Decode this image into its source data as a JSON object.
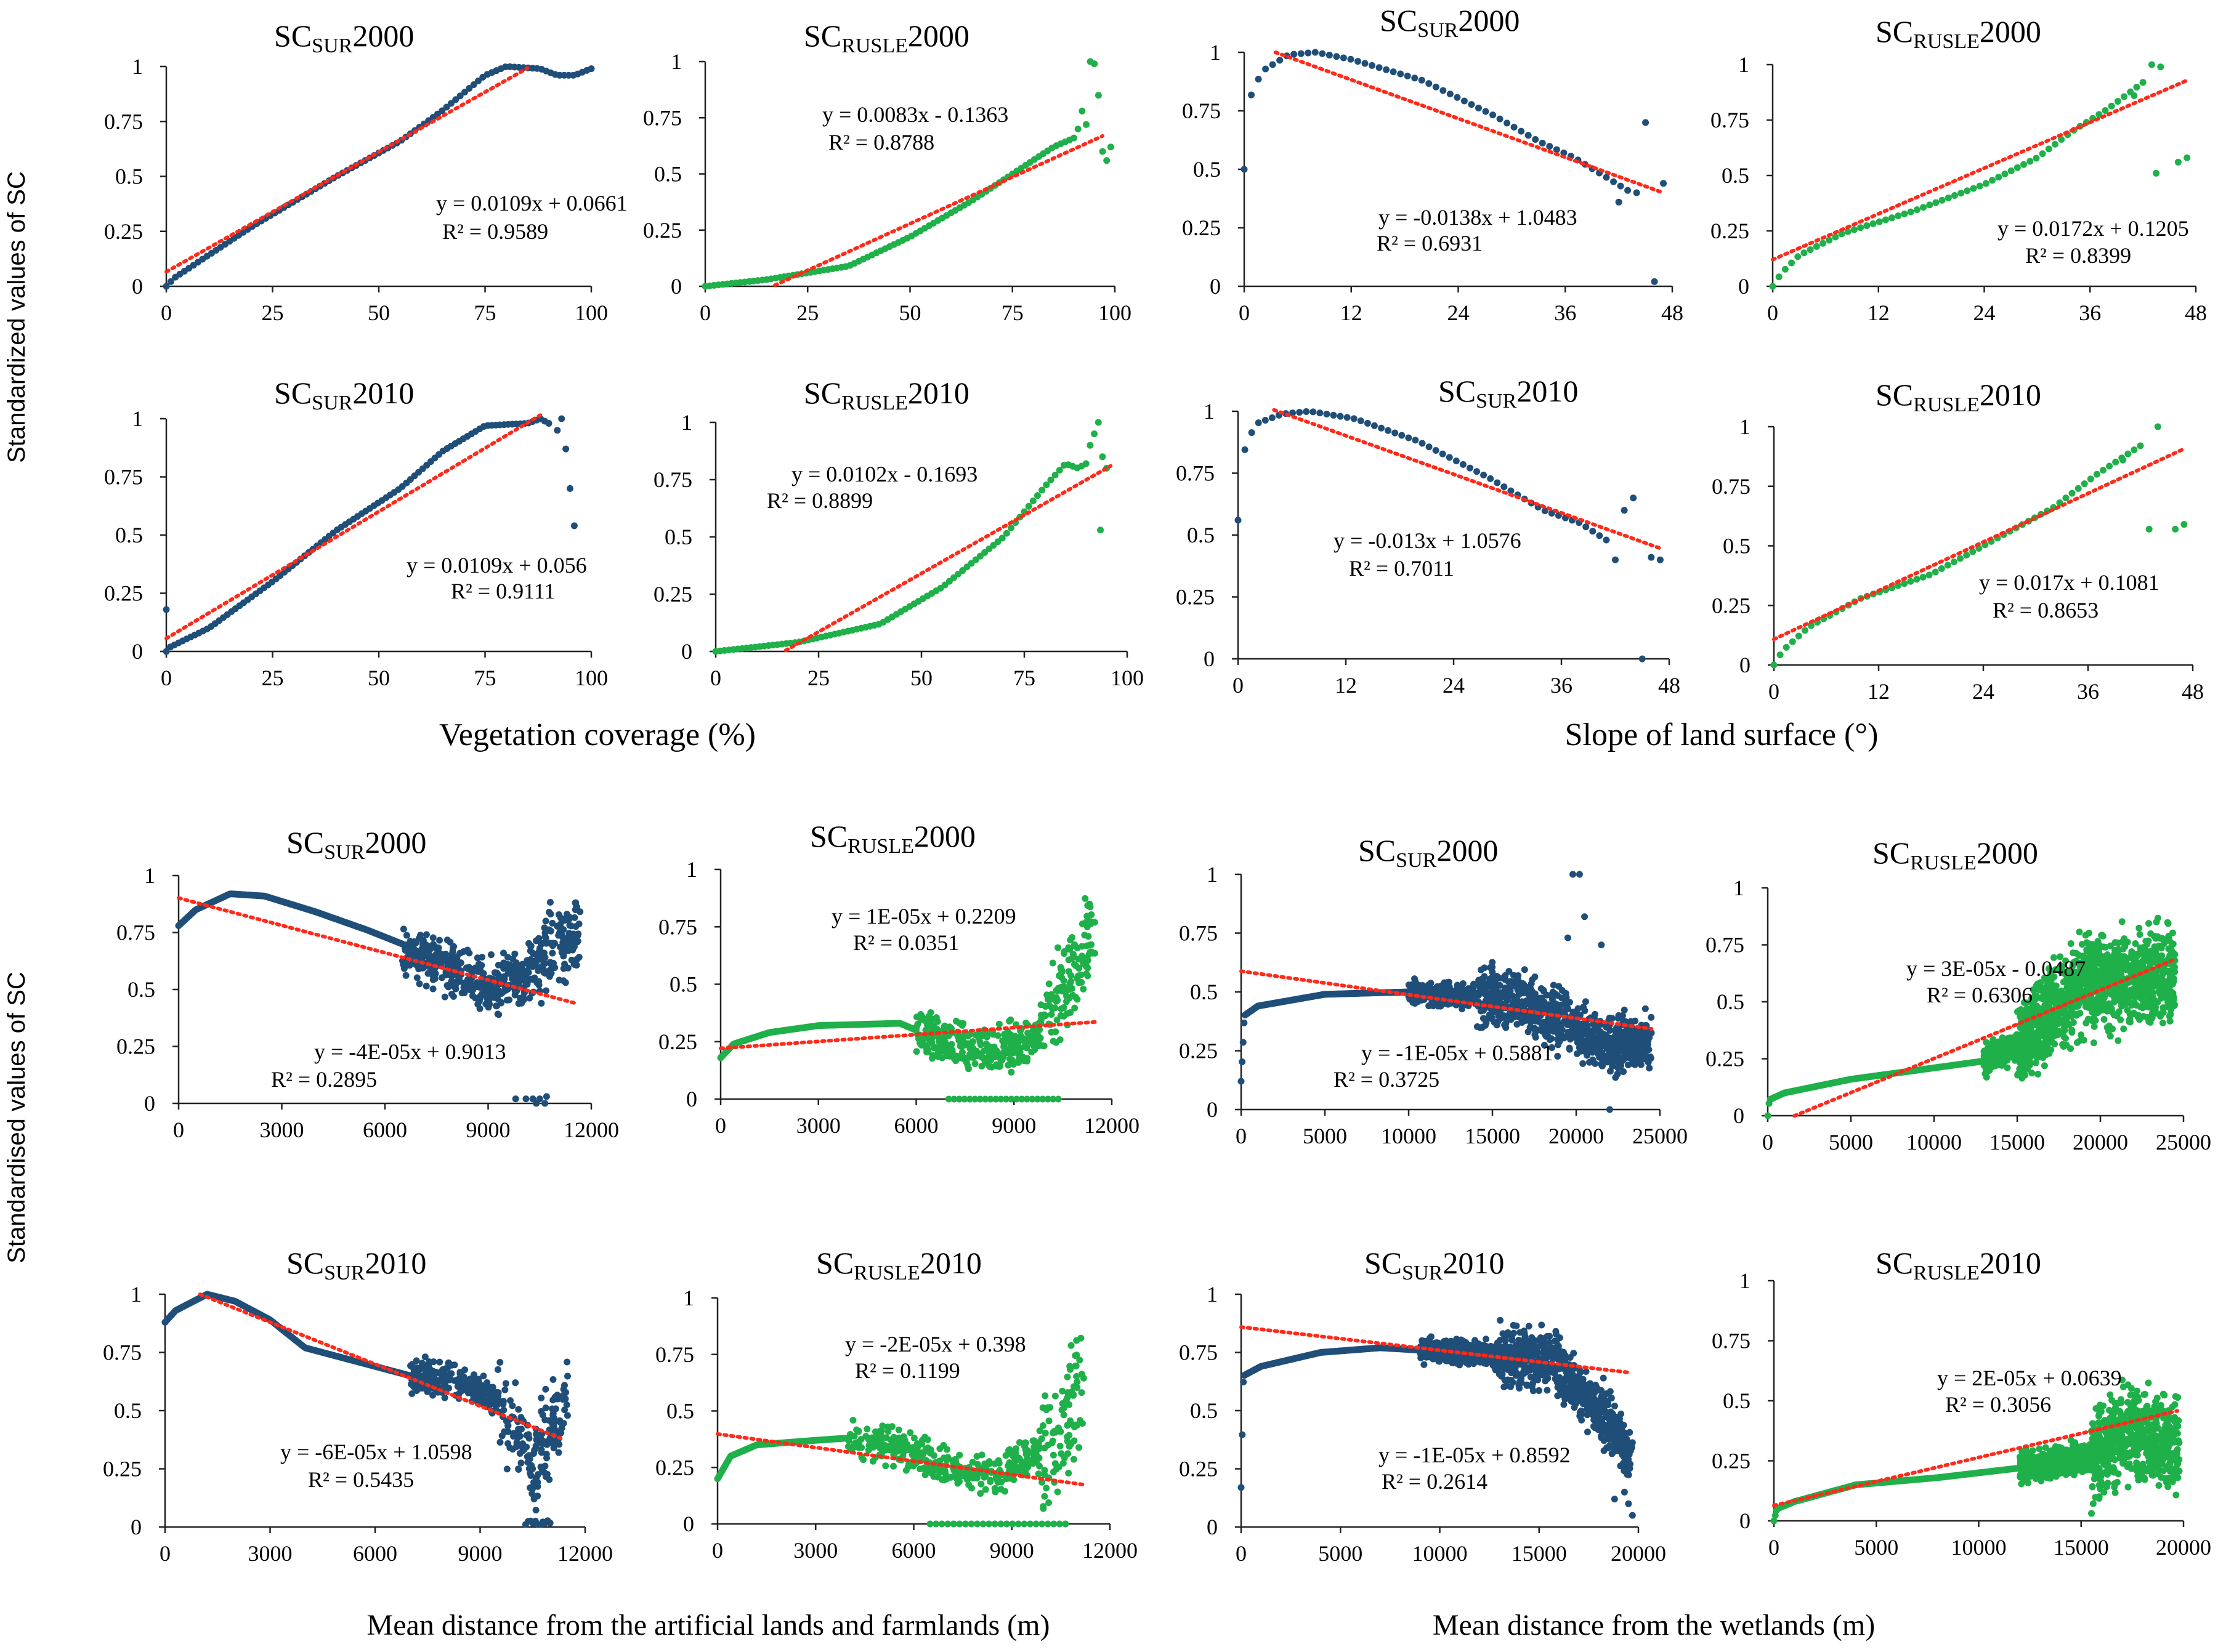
{
  "colors": {
    "sur": "#1f4e79",
    "rusle": "#1fb04a",
    "trend": "#ff2a1a",
    "axis": "#222222"
  },
  "figure": {
    "ylabel_top": "Standardized values of SC",
    "ylabel_bottom": "Standardised values of SC",
    "xlabels": [
      "Vegetation  coverage (%)",
      "Slope of land surface (°)",
      "Mean distance from the artificial lands and farmlands (m)",
      "Mean distance from the wetlands (m)"
    ]
  },
  "chart_data": [
    {
      "type": "scatter",
      "title_main": "SC",
      "title_sub": "SUR",
      "title_year": "2000",
      "color": "sur",
      "xlim": [
        0,
        100
      ],
      "xticks": [
        0,
        25,
        50,
        75,
        100
      ],
      "ylim": [
        0,
        1
      ],
      "yticks": [
        "0",
        "0.25",
        "0.5",
        "0.75",
        "1"
      ],
      "eq": "y = 0.0109x + 0.0661",
      "r2": "R² = 0.9589",
      "trend": {
        "x": [
          0,
          85
        ]
      },
      "gen": "vegSur2000"
    },
    {
      "type": "scatter",
      "title_main": "SC",
      "title_sub": "RUSLE",
      "title_year": "2000",
      "color": "rusle",
      "xlim": [
        0,
        100
      ],
      "xticks": [
        0,
        25,
        50,
        75,
        100
      ],
      "ylim": [
        0,
        1
      ],
      "yticks": [
        "0",
        "0.25",
        "0.5",
        "0.75",
        "1"
      ],
      "eq": "y = 0.0083x - 0.1363",
      "r2": "R² = 0.8788",
      "trend": {
        "x": [
          17,
          97
        ]
      },
      "gen": "vegRusle2000"
    },
    {
      "type": "scatter",
      "title_main": "SC",
      "title_sub": "SUR",
      "title_year": "2000",
      "color": "sur",
      "xlim": [
        0,
        48
      ],
      "xticks": [
        0,
        12,
        24,
        36,
        48
      ],
      "ylim": [
        0,
        1
      ],
      "yticks": [
        "0",
        "0.25",
        "0.5",
        "0.75",
        "1"
      ],
      "eq": "y = -0.0138x + 1.0483",
      "r2": "R² = 0.6931",
      "trend": {
        "x": [
          3.5,
          47
        ]
      },
      "gen": "slopeSur2000"
    },
    {
      "type": "scatter",
      "title_main": "SC",
      "title_sub": "RUSLE",
      "title_year": "2000",
      "color": "rusle",
      "xlim": [
        0,
        48
      ],
      "xticks": [
        0,
        12,
        24,
        36,
        48
      ],
      "ylim": [
        0,
        1
      ],
      "yticks": [
        "0",
        "0.25",
        "0.5",
        "0.75",
        "1"
      ],
      "eq": "y = 0.0172x + 0.1205",
      "r2": "R² = 0.8399",
      "trend": {
        "x": [
          0,
          47
        ]
      },
      "gen": "slopeRusle2000"
    },
    {
      "type": "scatter",
      "title_main": "SC",
      "title_sub": "SUR",
      "title_year": "2010",
      "color": "sur",
      "xlim": [
        0,
        100
      ],
      "xticks": [
        0,
        25,
        50,
        75,
        100
      ],
      "ylim": [
        0,
        1
      ],
      "yticks": [
        "0",
        "0.25",
        "0.5",
        "0.75",
        "1"
      ],
      "eq": "y = 0.0109x + 0.056",
      "r2": "R² = 0.9111",
      "trend": {
        "x": [
          0,
          88
        ]
      },
      "gen": "vegSur2010"
    },
    {
      "type": "scatter",
      "title_main": "SC",
      "title_sub": "RUSLE",
      "title_year": "2010",
      "color": "rusle",
      "xlim": [
        0,
        100
      ],
      "xticks": [
        0,
        25,
        50,
        75,
        100
      ],
      "ylim": [
        0,
        1
      ],
      "yticks": [
        "0",
        "0.25",
        "0.5",
        "0.75",
        "1"
      ],
      "eq": "y = 0.0102x - 0.1693",
      "r2": "R² = 0.8899",
      "trend": {
        "x": [
          17,
          96
        ]
      },
      "gen": "vegRusle2010"
    },
    {
      "type": "scatter",
      "title_main": "SC",
      "title_sub": "SUR",
      "title_year": "2010",
      "color": "sur",
      "xlim": [
        0,
        48
      ],
      "xticks": [
        0,
        12,
        24,
        36,
        48
      ],
      "ylim": [
        0,
        1
      ],
      "yticks": [
        "0",
        "0.25",
        "0.5",
        "0.75",
        "1"
      ],
      "eq": "y = -0.013x + 1.0576",
      "r2": "R² = 0.7011",
      "trend": {
        "x": [
          4,
          47
        ]
      },
      "gen": "slopeSur2010"
    },
    {
      "type": "scatter",
      "title_main": "SC",
      "title_sub": "RUSLE",
      "title_year": "2010",
      "color": "rusle",
      "xlim": [
        0,
        48
      ],
      "xticks": [
        0,
        12,
        24,
        36,
        48
      ],
      "ylim": [
        0,
        1
      ],
      "yticks": [
        "0",
        "0.25",
        "0.5",
        "0.75",
        "1"
      ],
      "eq": "y = 0.017x + 0.1081",
      "r2": "R² = 0.8653",
      "trend": {
        "x": [
          0,
          47
        ]
      },
      "gen": "slopeRusle2010"
    },
    {
      "type": "scatter",
      "title_main": "SC",
      "title_sub": "SUR",
      "title_year": "2000",
      "color": "sur",
      "xlim": [
        0,
        12000
      ],
      "xticks": [
        0,
        3000,
        6000,
        9000,
        12000
      ],
      "ylim": [
        0,
        1
      ],
      "yticks": [
        "0",
        "0.25",
        "0.5",
        "0.75",
        "1"
      ],
      "eq": "y = -4E-05x  + 0.9013",
      "r2": "R² = 0.2895",
      "trend": {
        "x": [
          0,
          11500
        ]
      },
      "gen": "artSur2000"
    },
    {
      "type": "scatter",
      "title_main": "SC",
      "title_sub": "RUSLE",
      "title_year": "2000",
      "color": "rusle",
      "xlim": [
        0,
        12000
      ],
      "xticks": [
        0,
        3000,
        6000,
        9000,
        12000
      ],
      "ylim": [
        0,
        1
      ],
      "yticks": [
        "0",
        "0.25",
        "0.5",
        "0.75",
        "1"
      ],
      "eq": "y = 1E-05x + 0.2209",
      "r2": "R² = 0.0351",
      "trend": {
        "x": [
          0,
          11500
        ]
      },
      "gen": "artRusle2000"
    },
    {
      "type": "scatter",
      "title_main": "SC",
      "title_sub": "SUR",
      "title_year": "2000",
      "color": "sur",
      "xlim": [
        0,
        25000
      ],
      "xticks": [
        0,
        5000,
        10000,
        15000,
        20000,
        25000
      ],
      "ylim": [
        0,
        1
      ],
      "yticks": [
        "0",
        "0.25",
        "0.5",
        "0.75",
        "1"
      ],
      "eq": "y = -1E-05x + 0.5881",
      "r2": "R² = 0.3725",
      "trend": {
        "x": [
          0,
          24500
        ]
      },
      "gen": "wetSur2000"
    },
    {
      "type": "scatter",
      "title_main": "SC",
      "title_sub": "RUSLE",
      "title_year": "2000",
      "color": "rusle",
      "xlim": [
        0,
        25000
      ],
      "xticks": [
        0,
        5000,
        10000,
        15000,
        20000,
        25000
      ],
      "ylim": [
        0,
        1
      ],
      "yticks": [
        "0",
        "0.25",
        "0.5",
        "0.75",
        "1"
      ],
      "eq": "y = 3E-05x - 0.0487",
      "r2": "R² = 0.6306",
      "trend": {
        "x": [
          1600,
          24500
        ]
      },
      "gen": "wetRusle2000"
    },
    {
      "type": "scatter",
      "title_main": "SC",
      "title_sub": "SUR",
      "title_year": "2010",
      "color": "sur",
      "xlim": [
        0,
        12000
      ],
      "xticks": [
        0,
        3000,
        6000,
        9000,
        12000
      ],
      "ylim": [
        0,
        1
      ],
      "yticks": [
        "0",
        "0.25",
        "0.5",
        "0.75",
        "1"
      ],
      "eq": "y = -6E-05x  + 1.0598",
      "r2": "R² = 0.5435",
      "trend": {
        "x": [
          1000,
          11300
        ]
      },
      "gen": "artSur2010"
    },
    {
      "type": "scatter",
      "title_main": "SC",
      "title_sub": "RUSLE",
      "title_year": "2010",
      "color": "rusle",
      "xlim": [
        0,
        12000
      ],
      "xticks": [
        0,
        3000,
        6000,
        9000,
        12000
      ],
      "ylim": [
        0,
        1
      ],
      "yticks": [
        "0",
        "0.25",
        "0.5",
        "0.75",
        "1"
      ],
      "eq": "y = -2E-05x + 0.398",
      "r2": "R² = 0.1199",
      "trend": {
        "x": [
          0,
          11200
        ]
      },
      "gen": "artRusle2010"
    },
    {
      "type": "scatter",
      "title_main": "SC",
      "title_sub": "SUR",
      "title_year": "2010",
      "color": "sur",
      "xlim": [
        0,
        20000
      ],
      "xticks": [
        0,
        5000,
        10000,
        15000,
        20000
      ],
      "ylim": [
        0,
        1
      ],
      "yticks": [
        "0",
        "0.25",
        "0.5",
        "0.75",
        "1"
      ],
      "eq": "y = -1E-05x  + 0.8592",
      "r2": "R² = 0.2614",
      "trend": {
        "x": [
          0,
          19500
        ]
      },
      "gen": "wetSur2010"
    },
    {
      "type": "scatter",
      "title_main": "SC",
      "title_sub": "RUSLE",
      "title_year": "2010",
      "color": "rusle",
      "xlim": [
        0,
        20000
      ],
      "xticks": [
        0,
        5000,
        10000,
        15000,
        20000
      ],
      "ylim": [
        0,
        1
      ],
      "yticks": [
        "0",
        "0.25",
        "0.5",
        "0.75",
        "1"
      ],
      "eq": "y = 2E-05x + 0.0639",
      "r2": "R² = 0.3056",
      "trend": {
        "x": [
          0,
          19700
        ]
      },
      "gen": "wetRusle2010"
    }
  ]
}
